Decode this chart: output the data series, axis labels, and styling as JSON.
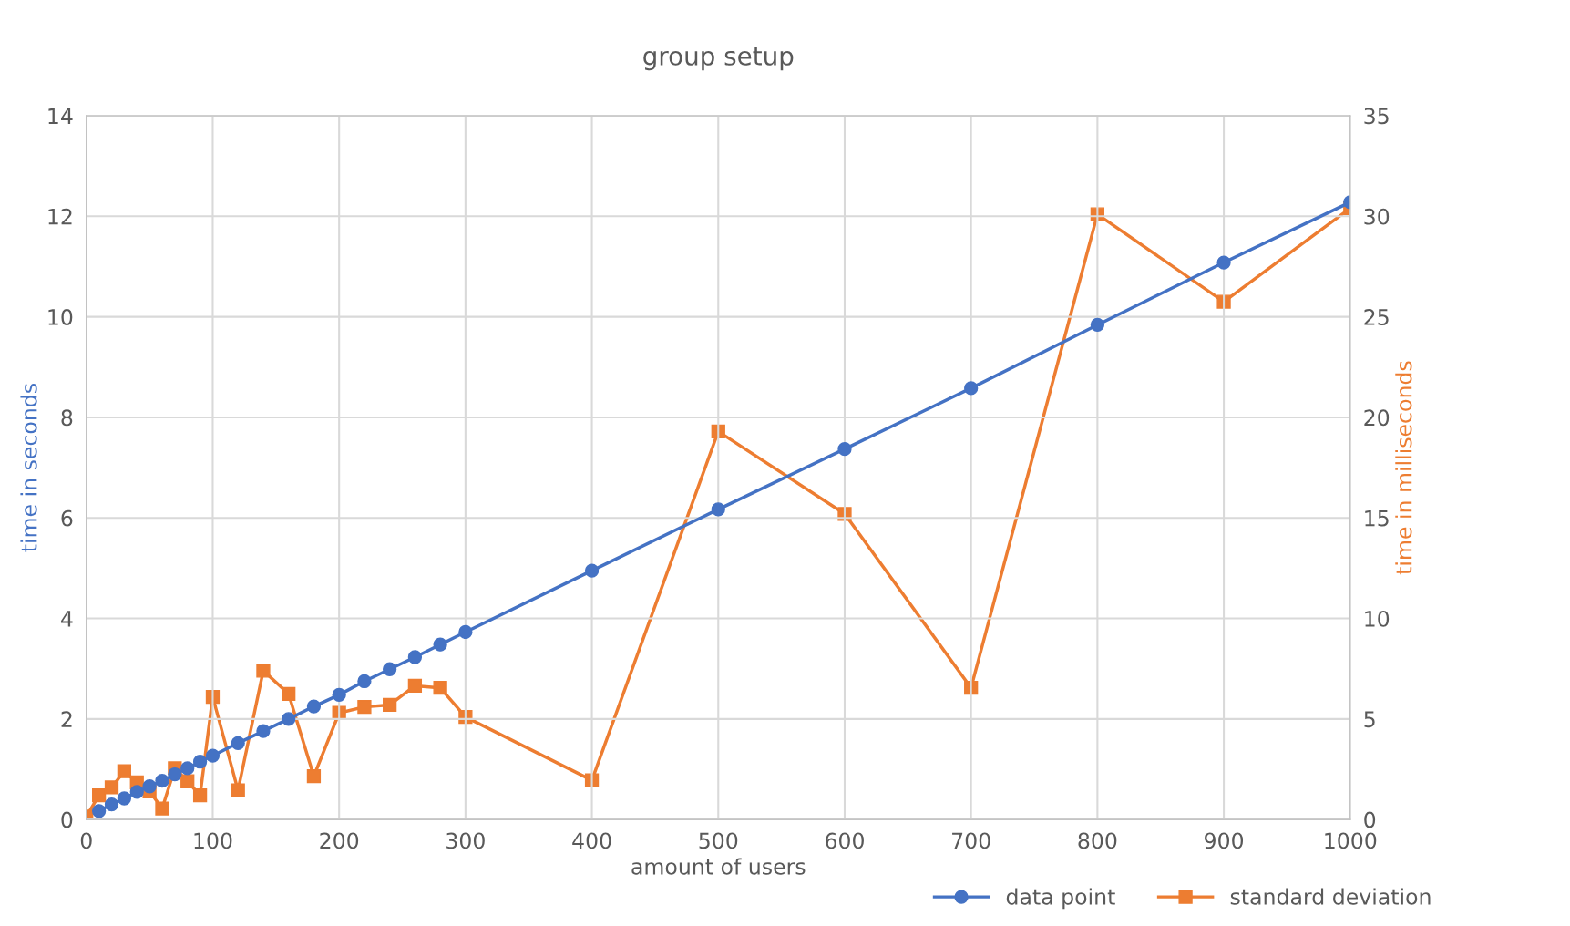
{
  "chart_data": {
    "type": "line",
    "title": "group setup",
    "xlabel": "amount of users",
    "ylabel": "time in seconds",
    "y2label": "time in milliseconds",
    "xlim": [
      0,
      1000
    ],
    "xticks": [
      0,
      100,
      200,
      300,
      400,
      500,
      600,
      700,
      800,
      900,
      1000
    ],
    "ylim": [
      0,
      14
    ],
    "yticks": [
      0,
      2,
      4,
      6,
      8,
      10,
      12,
      14
    ],
    "y2lim": [
      0,
      35
    ],
    "y2ticks": [
      0,
      5,
      10,
      15,
      20,
      25,
      30,
      35
    ],
    "grid": true,
    "legend": "bottom right",
    "series": [
      {
        "name": "data point",
        "color": "#4472c4",
        "marker": "circle",
        "x": [
          10,
          20,
          30,
          40,
          50,
          60,
          70,
          80,
          90,
          100,
          120,
          140,
          160,
          180,
          200,
          220,
          240,
          260,
          280,
          300,
          400,
          500,
          600,
          700,
          800,
          900,
          1000
        ],
        "values": [
          0.17,
          0.3,
          0.42,
          0.55,
          0.66,
          0.77,
          0.9,
          1.02,
          1.15,
          1.27,
          1.52,
          1.76,
          2.0,
          2.25,
          2.48,
          2.75,
          2.99,
          3.23,
          3.48,
          3.73,
          4.95,
          6.17,
          7.37,
          8.58,
          9.84,
          11.08,
          12.28
        ]
      },
      {
        "name": "standard deviation",
        "color": "#ed7d31",
        "marker": "square",
        "axis": "y2",
        "x": [
          0,
          10,
          20,
          30,
          40,
          50,
          60,
          70,
          80,
          90,
          100,
          120,
          140,
          160,
          180,
          200,
          220,
          240,
          260,
          280,
          300,
          400,
          500,
          600,
          700,
          800,
          900,
          1000
        ],
        "values": [
          0.15,
          1.2,
          1.6,
          2.4,
          1.85,
          1.4,
          0.55,
          2.55,
          1.9,
          1.2,
          6.1,
          1.45,
          7.4,
          6.25,
          2.15,
          5.3,
          5.6,
          5.7,
          6.65,
          6.55,
          5.1,
          1.95,
          19.3,
          15.2,
          6.55,
          30.1,
          25.75,
          30.4
        ]
      }
    ]
  }
}
